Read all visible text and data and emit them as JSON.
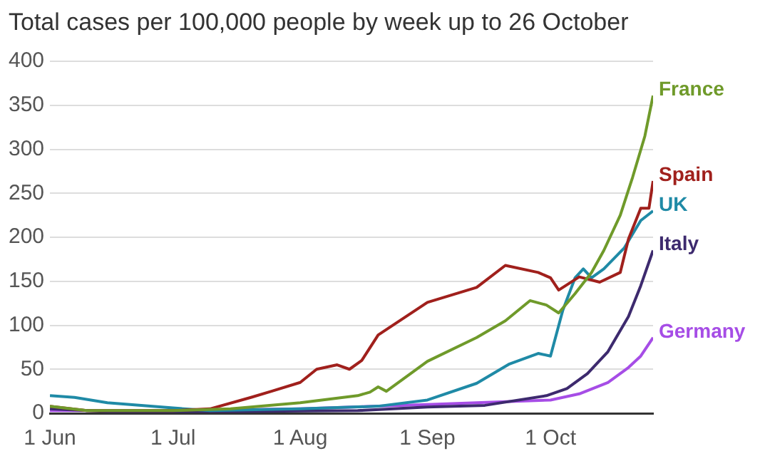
{
  "chart_data": {
    "type": "line",
    "title": "Total cases per 100,000 people by week up to 26 October",
    "xlim": [
      "--06-01",
      "--10-26"
    ],
    "xticks": [
      {
        "value": "--06-01",
        "label": "1 Jun"
      },
      {
        "value": "--07-01",
        "label": "1 Jul"
      },
      {
        "value": "--08-01",
        "label": "1 Aug"
      },
      {
        "value": "--09-01",
        "label": "1 Sep"
      },
      {
        "value": "--10-01",
        "label": "1 Oct"
      }
    ],
    "ylim": [
      0,
      400
    ],
    "yticks": [
      0,
      50,
      100,
      150,
      200,
      250,
      300,
      350,
      400
    ],
    "grid": "y",
    "legend": false,
    "marker": "none",
    "line_style": "solid",
    "series": [
      {
        "name": "France",
        "color": "#6f9a2a",
        "x": [
          "--06-01",
          "--06-10",
          "--07-01",
          "--07-15",
          "--08-01",
          "--08-15",
          "--08-18",
          "--08-20",
          "--08-22",
          "--09-01",
          "--09-13",
          "--09-20",
          "--09-26",
          "--09-30",
          "--10-03",
          "--10-07",
          "--10-11",
          "--10-14",
          "--10-18",
          "--10-21",
          "--10-24",
          "--10-26"
        ],
        "values": [
          8,
          3,
          3,
          5,
          12,
          20,
          24,
          30,
          25,
          59,
          86,
          105,
          128,
          123,
          114,
          136,
          160,
          185,
          225,
          268,
          315,
          361
        ]
      },
      {
        "name": "Spain",
        "color": "#a0201c",
        "x": [
          "--06-01",
          "--06-10",
          "--07-01",
          "--07-10",
          "--07-20",
          "--07-25",
          "--08-01",
          "--08-05",
          "--08-10",
          "--08-13",
          "--08-16",
          "--08-20",
          "--09-01",
          "--09-13",
          "--09-20",
          "--09-28",
          "--10-01",
          "--10-03",
          "--10-08",
          "--10-13",
          "--10-18",
          "--10-20",
          "--10-23",
          "--10-25",
          "--10-26"
        ],
        "values": [
          8,
          3,
          3,
          5,
          18,
          25,
          35,
          50,
          55,
          50,
          60,
          89,
          126,
          143,
          168,
          160,
          154,
          140,
          155,
          149,
          160,
          198,
          233,
          233,
          264
        ]
      },
      {
        "name": "UK",
        "color": "#1f8aa6",
        "x": [
          "--06-01",
          "--06-07",
          "--06-15",
          "--07-01",
          "--07-10",
          "--08-01",
          "--08-20",
          "--09-01",
          "--09-13",
          "--09-21",
          "--09-28",
          "--10-01",
          "--10-04",
          "--10-07",
          "--10-09",
          "--10-11",
          "--10-14",
          "--10-19",
          "--10-23",
          "--10-26"
        ],
        "values": [
          20,
          18,
          12,
          6,
          3,
          5,
          8,
          15,
          34,
          56,
          68,
          65,
          117,
          154,
          164,
          154,
          164,
          188,
          219,
          230
        ]
      },
      {
        "name": "Italy",
        "color": "#3d2a6e",
        "x": [
          "--06-01",
          "--06-15",
          "--07-15",
          "--08-15",
          "--09-01",
          "--09-15",
          "--09-30",
          "--10-05",
          "--10-10",
          "--10-15",
          "--10-20",
          "--10-23",
          "--10-26"
        ],
        "values": [
          5,
          2,
          2,
          3,
          7,
          9,
          20,
          28,
          45,
          70,
          110,
          145,
          185
        ]
      },
      {
        "name": "Germany",
        "color": "#a64de6",
        "x": [
          "--06-01",
          "--07-01",
          "--08-01",
          "--09-01",
          "--10-01",
          "--10-08",
          "--10-15",
          "--10-20",
          "--10-23",
          "--10-26"
        ],
        "values": [
          3,
          3,
          5,
          10,
          15,
          22,
          35,
          52,
          65,
          86
        ]
      }
    ]
  }
}
